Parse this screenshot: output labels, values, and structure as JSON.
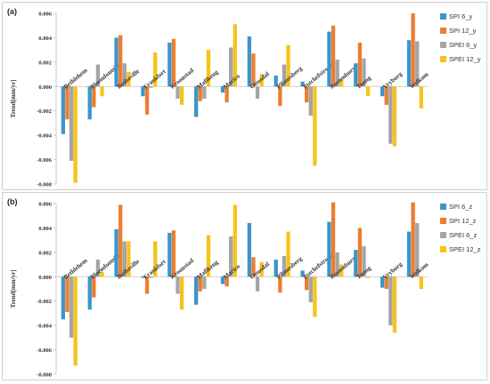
{
  "panels": [
    {
      "label": "(a)",
      "ylabel": "Trend[mm/yr]",
      "ticks": [
        "0.006",
        "0.004",
        "0.002",
        "0.000",
        "-0.002",
        "-0.004",
        "-0.006",
        "-0.008"
      ],
      "legend": [
        "SPI 6_y",
        "SPI 12_y",
        "SPEI 6_y",
        "SPEI 12_y"
      ]
    },
    {
      "label": "(b)",
      "ylabel": "Trend[mm/yr]",
      "ticks": [
        "0.006",
        "0.004",
        "0.002",
        "0.000",
        "-0.002",
        "-0.004",
        "-0.006",
        "-0.008"
      ],
      "legend": [
        "SPI 6_z",
        "SPI 12_z",
        "SPEI 6_z",
        "SPEI 12_z"
      ]
    }
  ],
  "colors": [
    "#3d95c9",
    "#ed7d31",
    "#a5a5a5",
    "#f7c31b"
  ],
  "chart_data": [
    {
      "type": "bar",
      "title": "(a)",
      "ylabel": "Trend[mm/yr]",
      "ylim": [
        -0.008,
        0.006
      ],
      "legend": "right",
      "categories": [
        "Bethlehem",
        "Bloemfontein",
        "Bothaville",
        "Frankfort",
        "Kroonstad",
        "Mafikeng",
        "Marico",
        "Ottosdal",
        "Pilanesberg",
        "Potchefstroom",
        "Rustenburg",
        "Taung",
        "Vryburg",
        "Welkom"
      ],
      "series": [
        {
          "name": "SPI 6_y",
          "values": [
            -0.0039,
            -0.0027,
            0.004,
            -0.0008,
            0.0036,
            -0.0025,
            -0.0005,
            0.0041,
            0.0009,
            0.0004,
            0.0045,
            0.0019,
            -0.0008,
            0.0038
          ]
        },
        {
          "name": "SPI 12_y",
          "values": [
            -0.0027,
            -0.0017,
            0.0042,
            -0.0023,
            0.0039,
            -0.0012,
            -0.0013,
            0.0027,
            -0.0016,
            -0.0013,
            0.005,
            0.0036,
            -0.0015,
            0.006
          ]
        },
        {
          "name": "SPEI 6_y",
          "values": [
            -0.0061,
            0.0018,
            0.0019,
            -0.0001,
            -0.001,
            -0.001,
            0.0032,
            -0.001,
            0.0018,
            -0.0024,
            0.0022,
            0.0023,
            -0.0047,
            0.0037
          ]
        },
        {
          "name": "SPEI 12_y",
          "values": [
            -0.0079,
            -0.0008,
            0.0012,
            0.0028,
            -0.0015,
            0.003,
            0.0051,
            0.001,
            0.0034,
            -0.0065,
            0.0006,
            -0.0008,
            -0.0049,
            -0.0018
          ]
        }
      ]
    },
    {
      "type": "bar",
      "title": "(b)",
      "ylabel": "Trend[mm/yr]",
      "ylim": [
        -0.008,
        0.006
      ],
      "legend": "right",
      "categories": [
        "Bethlehem",
        "Bloemfontein",
        "Bothaville",
        "Frankfort",
        "Kroonstad",
        "Mafikeng",
        "Marico",
        "Ottosdal",
        "Pilanesberg",
        "Potchefstroom",
        "Rustenburg",
        "Taung",
        "Vryburg",
        "Welkom"
      ],
      "series": [
        {
          "name": "SPI 6_z",
          "values": [
            -0.0035,
            -0.0027,
            0.0039,
            -0.0001,
            0.0036,
            -0.0023,
            -0.0006,
            0.0044,
            0.0014,
            0.0005,
            0.0045,
            0.0022,
            -0.0009,
            0.0037
          ]
        },
        {
          "name": "SPI 12_z",
          "values": [
            -0.0029,
            -0.0017,
            0.0059,
            -0.0014,
            0.0038,
            -0.0012,
            -0.0008,
            0.0016,
            -0.0013,
            -0.0011,
            0.0061,
            0.004,
            -0.001,
            0.0061
          ]
        },
        {
          "name": "SPEI 6_z",
          "values": [
            -0.005,
            0.0014,
            0.0029,
            -0.0001,
            -0.0014,
            -0.001,
            0.0033,
            -0.0012,
            0.0017,
            -0.0021,
            0.002,
            0.0025,
            -0.004,
            0.0044
          ]
        },
        {
          "name": "SPEI 12_z",
          "values": [
            -0.0073,
            0.0004,
            0.0029,
            0.0029,
            -0.0027,
            0.0034,
            0.0059,
            0.0012,
            0.0037,
            -0.0033,
            0.001,
            -0.0001,
            -0.0046,
            -0.001
          ]
        }
      ]
    }
  ]
}
